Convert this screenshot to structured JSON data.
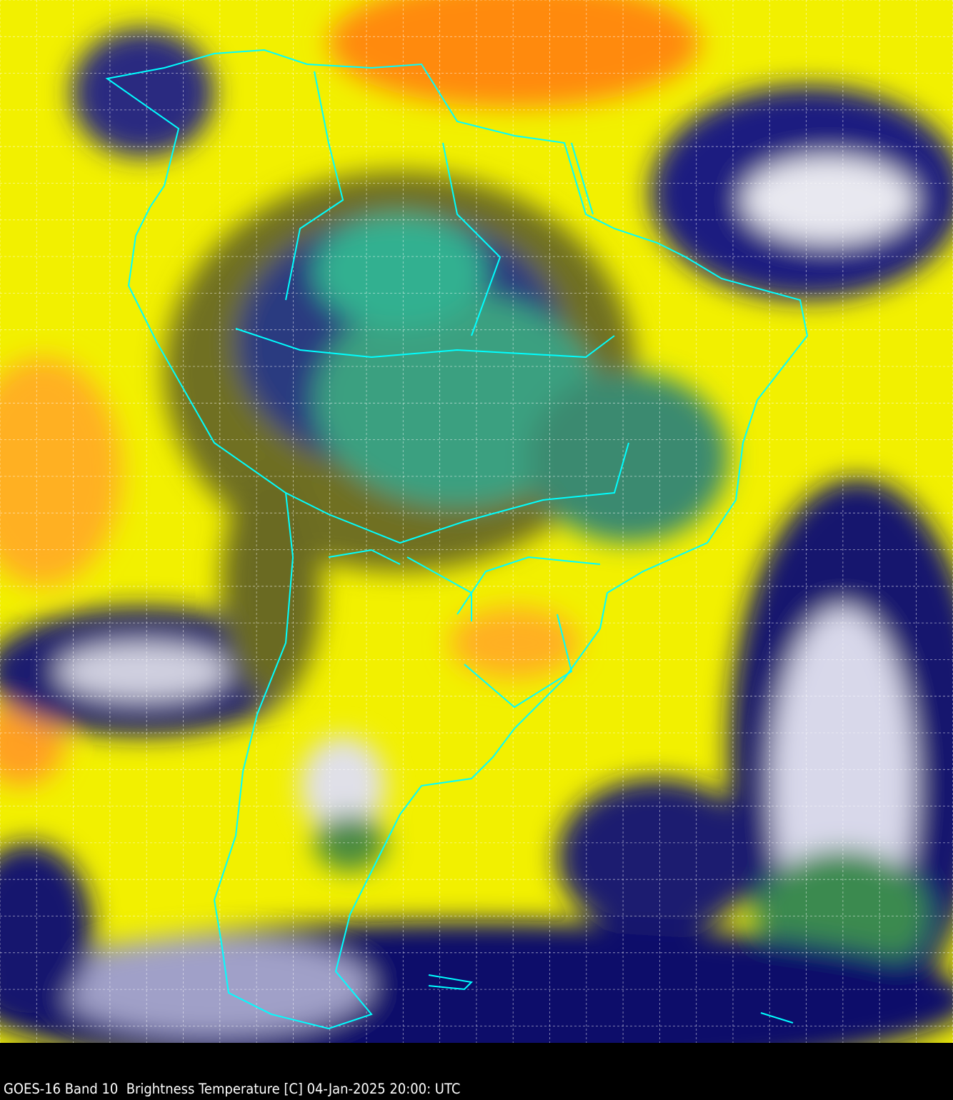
{
  "caption": "GOES-16 Band 10  Brightness Temperature [C] 04-Jan-2025 20:00: UTC",
  "colors": {
    "warm": "#ffff00",
    "hot": "#ff8c00",
    "cold": "#0a0a6e",
    "very_cold": "#2e9a6a",
    "borders": "#00ffff",
    "grid": "#ffffff"
  }
}
